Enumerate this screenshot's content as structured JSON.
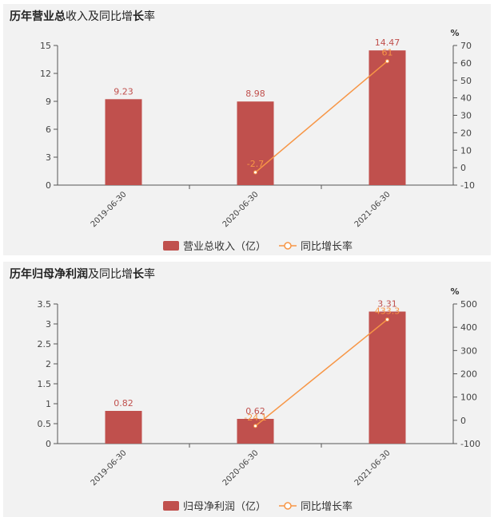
{
  "chart_data": [
    {
      "type": "bar",
      "title": "历年营业总收入及同比增长率",
      "categories": [
        "2019-06-30",
        "2020-06-30",
        "2021-06-30"
      ],
      "series": [
        {
          "name": "营业总收入（亿）",
          "type": "bar",
          "values": [
            9.23,
            8.98,
            14.47
          ],
          "labels": [
            "9.23",
            "8.98",
            "14.47"
          ],
          "color": "#c0504d"
        },
        {
          "name": "同比增长率",
          "type": "line",
          "axis": "right",
          "values": [
            null,
            -2.7,
            61
          ],
          "labels": [
            "",
            "-2.7",
            "61"
          ],
          "color": "#f79646"
        }
      ],
      "ylim": [
        0,
        15
      ],
      "yticks": [
        "0",
        "3",
        "6",
        "9",
        "12",
        "15"
      ],
      "y2lim": [
        -10,
        70
      ],
      "y2ticks": [
        "-10",
        "0",
        "10",
        "20",
        "30",
        "40",
        "50",
        "60",
        "70"
      ],
      "y2unit": "%",
      "legend": "bottom-center",
      "grid": false
    },
    {
      "type": "bar",
      "title": "历年归母净利润及同比增长率",
      "categories": [
        "2019-06-30",
        "2020-06-30",
        "2021-06-30"
      ],
      "series": [
        {
          "name": "归母净利润（亿）",
          "type": "bar",
          "values": [
            0.82,
            0.62,
            3.31
          ],
          "labels": [
            "0.82",
            "0.62",
            "3.31"
          ],
          "color": "#c0504d"
        },
        {
          "name": "同比增长率",
          "type": "line",
          "axis": "right",
          "values": [
            null,
            -24.1,
            433.3
          ],
          "labels": [
            "",
            "-24.1",
            "433.3"
          ],
          "color": "#f79646"
        }
      ],
      "ylim": [
        0,
        3.5
      ],
      "yticks": [
        "0",
        "0.5",
        "1",
        "1.5",
        "2",
        "2.5",
        "3",
        "3.5"
      ],
      "y2lim": [
        -100,
        500
      ],
      "y2ticks": [
        "-100",
        "0",
        "100",
        "200",
        "300",
        "400",
        "500"
      ],
      "y2unit": "%",
      "legend": "bottom-center",
      "grid": false
    }
  ]
}
